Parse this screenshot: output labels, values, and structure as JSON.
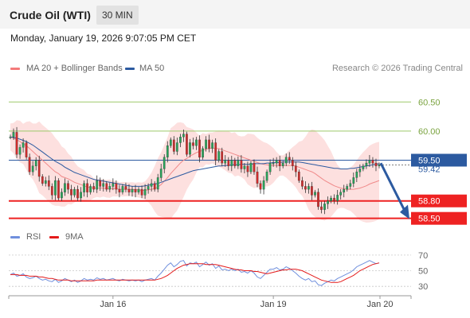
{
  "header": {
    "title": "Crude Oil (WTI)",
    "timeframe": "30 MIN"
  },
  "datetime": "Monday, January 19, 2026 9:07:05 PM CET",
  "copyright": "Research © 2026 Trading Central",
  "colors": {
    "bollinger": "#f47a7a",
    "ma50": "#2c5aa0",
    "rsi": "#6f8fdd",
    "rsi_ma": "#e41a1a",
    "support": "#ee2222",
    "resistance_level": "#9dc96a",
    "pivot": "#2c5aa0"
  },
  "chart_data": [
    {
      "type": "candlestick",
      "legend": [
        {
          "name": "MA 20 + Bollinger Bands",
          "color": "#f47a7a"
        },
        {
          "name": "MA 50",
          "color": "#2c5aa0"
        }
      ],
      "legend_position": "top-left",
      "x_ticks": [
        "Jan 16",
        "Jan 19",
        "Jan 20"
      ],
      "y_range": [
        58.4,
        60.75
      ],
      "levels": [
        {
          "value": 60.5,
          "label": "60.50",
          "kind": "resistance"
        },
        {
          "value": 60.0,
          "label": "60.00",
          "kind": "resistance"
        },
        {
          "value": 59.5,
          "label": "59.50",
          "kind": "pivot"
        },
        {
          "value": 58.8,
          "label": "58.80",
          "kind": "support"
        },
        {
          "value": 58.5,
          "label": "58.50",
          "kind": "support"
        }
      ],
      "last_price_label": "59.42",
      "close": [
        59.9,
        59.98,
        59.6,
        59.72,
        59.8,
        59.55,
        59.3,
        59.4,
        59.5,
        59.22,
        59.1,
        59.15,
        59.05,
        58.9,
        59.15,
        58.85,
        58.95,
        59.1,
        59.0,
        58.9,
        59.0,
        58.85,
        58.95,
        59.1,
        58.95,
        59.05,
        59.0,
        59.15,
        59.05,
        59.1,
        59.0,
        59.05,
        59.1,
        59.0,
        58.95,
        59.05,
        59.0,
        58.95,
        59.0,
        58.95,
        59.0,
        58.9,
        59.0,
        59.05,
        59.1,
        59.0,
        59.2,
        59.35,
        59.55,
        59.75,
        59.85,
        59.65,
        59.8,
        59.9,
        59.95,
        59.6,
        59.8,
        59.75,
        59.85,
        59.55,
        59.7,
        59.85,
        59.7,
        59.8,
        59.5,
        59.65,
        59.45,
        59.5,
        59.4,
        59.5,
        59.4,
        59.5,
        59.35,
        59.4,
        59.3,
        59.45,
        59.3,
        59.1,
        59.0,
        59.15,
        59.3,
        59.45,
        59.45,
        59.5,
        59.4,
        59.45,
        59.55,
        59.5,
        59.4,
        59.3,
        59.15,
        59.05,
        59.0,
        59.05,
        58.9,
        58.95,
        58.7,
        58.65,
        58.75,
        58.8,
        58.85,
        58.8,
        58.9,
        58.95,
        59.0,
        59.05,
        59.1,
        59.2,
        59.3,
        59.35,
        59.4,
        59.45,
        59.5,
        59.45,
        59.4,
        59.42
      ],
      "ma20": [
        59.9,
        59.88,
        59.85,
        59.82,
        59.78,
        59.75,
        59.7,
        59.65,
        59.6,
        59.55,
        59.5,
        59.45,
        59.4,
        59.35,
        59.3,
        59.27,
        59.22,
        59.2,
        59.18,
        59.15,
        59.12,
        59.1,
        59.08,
        59.06,
        59.04,
        59.03,
        59.02,
        59.02,
        59.02,
        59.02,
        59.01,
        59.01,
        59.01,
        59.01,
        59.0,
        59.0,
        59.0,
        59.0,
        59.0,
        58.99,
        58.99,
        58.98,
        58.98,
        58.99,
        59.0,
        59.01,
        59.04,
        59.08,
        59.14,
        59.2,
        59.27,
        59.33,
        59.39,
        59.45,
        59.5,
        59.53,
        59.57,
        59.6,
        59.63,
        59.65,
        59.67,
        59.69,
        59.7,
        59.71,
        59.7,
        59.7,
        59.68,
        59.66,
        59.64,
        59.62,
        59.6,
        59.58,
        59.56,
        59.54,
        59.52,
        59.5,
        59.48,
        59.46,
        59.44,
        59.43,
        59.42,
        59.41,
        59.41,
        59.41,
        59.41,
        59.41,
        59.41,
        59.41,
        59.41,
        59.4,
        59.38,
        59.36,
        59.34,
        59.32,
        59.3,
        59.27,
        59.23,
        59.19,
        59.15,
        59.12,
        59.09,
        59.06,
        59.04,
        59.02,
        59.01,
        59.0,
        59.0,
        59.0,
        59.01,
        59.02,
        59.04,
        59.06,
        59.09,
        59.11,
        59.13,
        59.15
      ],
      "ma50": [
        59.9,
        59.89,
        59.88,
        59.86,
        59.84,
        59.82,
        59.79,
        59.76,
        59.72,
        59.68,
        59.64,
        59.6,
        59.56,
        59.52,
        59.48,
        59.45,
        59.42,
        59.38,
        59.35,
        59.32,
        59.29,
        59.27,
        59.25,
        59.23,
        59.21,
        59.19,
        59.17,
        59.16,
        59.15,
        59.14,
        59.13,
        59.12,
        59.11,
        59.1,
        59.09,
        59.08,
        59.07,
        59.06,
        59.05,
        59.05,
        59.05,
        59.05,
        59.06,
        59.07,
        59.08,
        59.09,
        59.1,
        59.12,
        59.14,
        59.16,
        59.18,
        59.2,
        59.22,
        59.24,
        59.26,
        59.28,
        59.3,
        59.32,
        59.33,
        59.34,
        59.35,
        59.36,
        59.37,
        59.38,
        59.39,
        59.4,
        59.4,
        59.41,
        59.41,
        59.42,
        59.42,
        59.42,
        59.43,
        59.43,
        59.43,
        59.43,
        59.44,
        59.44,
        59.44,
        59.44,
        59.45,
        59.45,
        59.46,
        59.46,
        59.46,
        59.47,
        59.47,
        59.47,
        59.47,
        59.47,
        59.47,
        59.46,
        59.45,
        59.44,
        59.43,
        59.42,
        59.41,
        59.4,
        59.39,
        59.38,
        59.37,
        59.36,
        59.36,
        59.35,
        59.35,
        59.35,
        59.36,
        59.36,
        59.37,
        59.38,
        59.39,
        59.4,
        59.41,
        59.42,
        59.43,
        59.44
      ]
    },
    {
      "type": "line",
      "legend": [
        {
          "name": "RSI",
          "color": "#6f8fdd"
        },
        {
          "name": "9MA",
          "color": "#e41a1a"
        }
      ],
      "legend_position": "top-left",
      "y_range": [
        20,
        78
      ],
      "y_ticks": [
        "70",
        "50",
        "30"
      ],
      "rsi": [
        45,
        47,
        43,
        44,
        46,
        42,
        40,
        41,
        43,
        40,
        38,
        39,
        37,
        36,
        39,
        35,
        37,
        40,
        38,
        36,
        38,
        35,
        37,
        40,
        38,
        39,
        38,
        41,
        39,
        40,
        38,
        39,
        40,
        38,
        37,
        39,
        38,
        37,
        38,
        37,
        38,
        36,
        38,
        39,
        40,
        38,
        43,
        47,
        52,
        57,
        60,
        55,
        58,
        62,
        63,
        56,
        60,
        59,
        61,
        55,
        58,
        61,
        57,
        59,
        53,
        56,
        51,
        52,
        50,
        52,
        50,
        52,
        48,
        49,
        47,
        50,
        47,
        42,
        40,
        44,
        48,
        52,
        52,
        54,
        51,
        52,
        55,
        53,
        50,
        47,
        43,
        40,
        38,
        40,
        36,
        37,
        32,
        31,
        34,
        36,
        38,
        37,
        40,
        42,
        44,
        46,
        48,
        51,
        55,
        57,
        59,
        61,
        63,
        61,
        59,
        60
      ],
      "ma9": [
        45,
        45,
        45,
        44,
        44,
        44,
        43,
        43,
        43,
        42,
        42,
        41,
        40,
        40,
        39,
        38,
        38,
        38,
        38,
        37,
        37,
        37,
        37,
        37,
        37,
        37,
        37,
        38,
        38,
        38,
        38,
        38,
        38,
        38,
        38,
        38,
        38,
        38,
        38,
        38,
        38,
        38,
        38,
        38,
        38,
        38,
        39,
        40,
        42,
        44,
        47,
        50,
        53,
        55,
        57,
        58,
        59,
        59,
        59,
        59,
        59,
        58,
        58,
        58,
        58,
        57,
        56,
        55,
        54,
        53,
        52,
        51,
        51,
        50,
        50,
        50,
        49,
        49,
        48,
        47,
        46,
        47,
        48,
        49,
        50,
        51,
        51,
        52,
        52,
        52,
        51,
        50,
        48,
        46,
        44,
        42,
        40,
        38,
        37,
        36,
        35,
        35,
        35,
        36,
        38,
        40,
        42,
        44,
        47,
        50,
        52,
        54,
        56,
        58,
        59,
        60
      ]
    }
  ]
}
